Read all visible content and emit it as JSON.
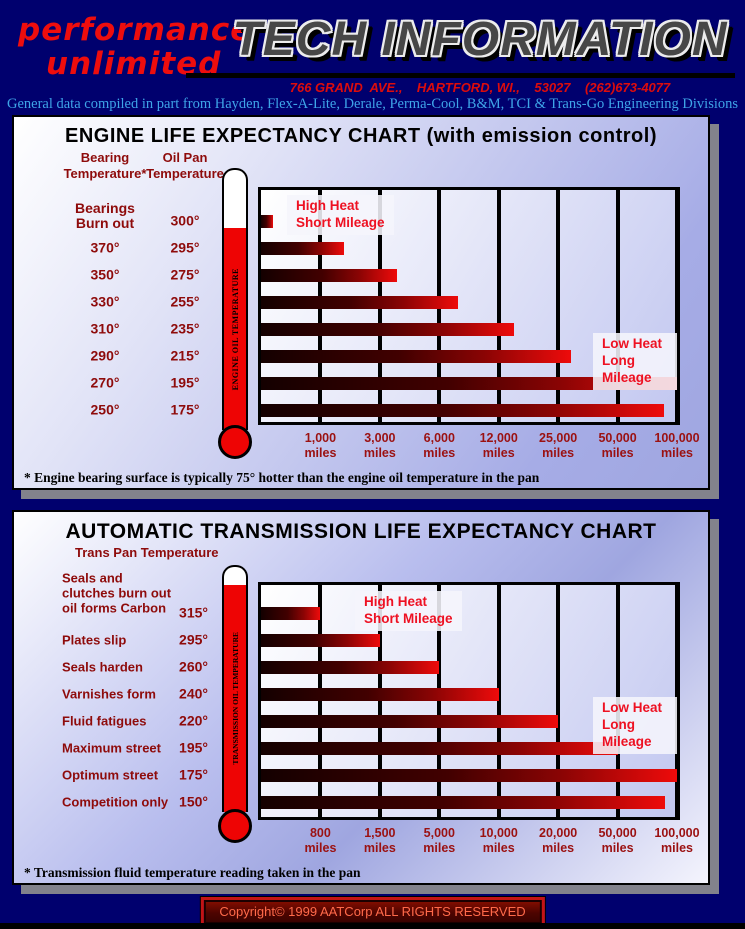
{
  "header": {
    "logo_line1": "performance",
    "logo_line2": "unlimited",
    "title": "TECH INFORMATION",
    "address": "766 GRAND  AVE.,    HARTFORD, WI.,    53027    (262)673-4077",
    "tagline": "General data compiled in part from Hayden, Flex-A-Lite, Derale, Perma-Cool, B&M, TCI & Trans-Go Engineering Divisions"
  },
  "chart_data": [
    {
      "type": "bar",
      "orientation": "horizontal",
      "title": "ENGINE LIFE EXPECTANCY CHART (with emission control)",
      "col1_header": "Bearing\nTemperature*",
      "col2_header": "Oil Pan\nTemperature",
      "thermometer_label": "ENGINE OIL TEMPERATURE",
      "high_label": "High Heat\nShort Mileage",
      "low_label": "Low Heat\nLong Mileage",
      "x_ticks": [
        "1,000",
        "3,000",
        "6,000",
        "12,000",
        "25,000",
        "50,000",
        "100,000"
      ],
      "tick_unit": "miles",
      "x_scale": "categorical (log-like mileage steps)",
      "grid": true,
      "footnote": "* Engine bearing surface is typically 75° hotter than the engine oil temperature in the pan",
      "rows": [
        {
          "label": "Bearings\nBurn out",
          "temp": "300°",
          "miles_est": 400,
          "bar_frac": 0.03
        },
        {
          "label": "370°",
          "temp": "295°",
          "miles_est": 1500,
          "bar_frac": 0.199
        },
        {
          "label": "350°",
          "temp": "275°",
          "miles_est": 3500,
          "bar_frac": 0.327
        },
        {
          "label": "330°",
          "temp": "255°",
          "miles_est": 7000,
          "bar_frac": 0.474
        },
        {
          "label": "310°",
          "temp": "235°",
          "miles_est": 14000,
          "bar_frac": 0.607
        },
        {
          "label": "290°",
          "temp": "215°",
          "miles_est": 30000,
          "bar_frac": 0.746
        },
        {
          "label": "270°",
          "temp": "195°",
          "miles_est": 100000,
          "bar_frac": 1.0
        },
        {
          "label": "250°",
          "temp": "175°",
          "miles_est": 90000,
          "bar_frac": 0.969
        }
      ]
    },
    {
      "type": "bar",
      "orientation": "horizontal",
      "title": "AUTOMATIC TRANSMISSION LIFE EXPECTANCY CHART",
      "col1_header": "Trans Pan Temperature",
      "thermometer_label": "TRANSMISSION OIL TEMPERATURE",
      "high_label": "High Heat\nShort Mileage",
      "low_label": "Low Heat\nLong Mileage",
      "x_ticks": [
        "800",
        "1,500",
        "5,000",
        "10,000",
        "20,000",
        "50,000",
        "100,000"
      ],
      "tick_unit": "miles",
      "x_scale": "categorical (log-like mileage steps)",
      "grid": true,
      "footnote": "* Transmission fluid temperature reading taken in the pan",
      "rows": [
        {
          "label": "Seals and\nclutches burn out\noil forms Carbon",
          "temp": "315°",
          "miles_est": 800,
          "bar_frac": 0.143
        },
        {
          "label": "Plates slip",
          "temp": "295°",
          "miles_est": 1500,
          "bar_frac": 0.286
        },
        {
          "label": "Seals harden",
          "temp": "260°",
          "miles_est": 5000,
          "bar_frac": 0.429
        },
        {
          "label": "Varnishes form",
          "temp": "240°",
          "miles_est": 10000,
          "bar_frac": 0.571
        },
        {
          "label": "Fluid fatigues",
          "temp": "220°",
          "miles_est": 20000,
          "bar_frac": 0.714
        },
        {
          "label": "Maximum street",
          "temp": "195°",
          "miles_est": 50000,
          "bar_frac": 0.857
        },
        {
          "label": "Optimum street",
          "temp": "175°",
          "miles_est": 100000,
          "bar_frac": 1.0
        },
        {
          "label": "Competition only",
          "temp": "150°",
          "miles_est": 90000,
          "bar_frac": 0.97
        }
      ]
    }
  ],
  "colors": {
    "page_bg": "#00006E",
    "logo_red": "#EE0D0D",
    "title_gray": "#474747",
    "dark_red_text": "#8E0B0B",
    "bright_red_label": "#EE1122",
    "bar_gradient_end": "#EE0B0B",
    "thermometer_red": "#EE0404",
    "tagline_blue": "#3EA4E8",
    "panel_shadow": "#82828C",
    "copyright_text": "#FF6A4A"
  },
  "footer": {
    "copyright": "Copyright© 1999 AATCorp ALL RIGHTS RESERVED"
  }
}
